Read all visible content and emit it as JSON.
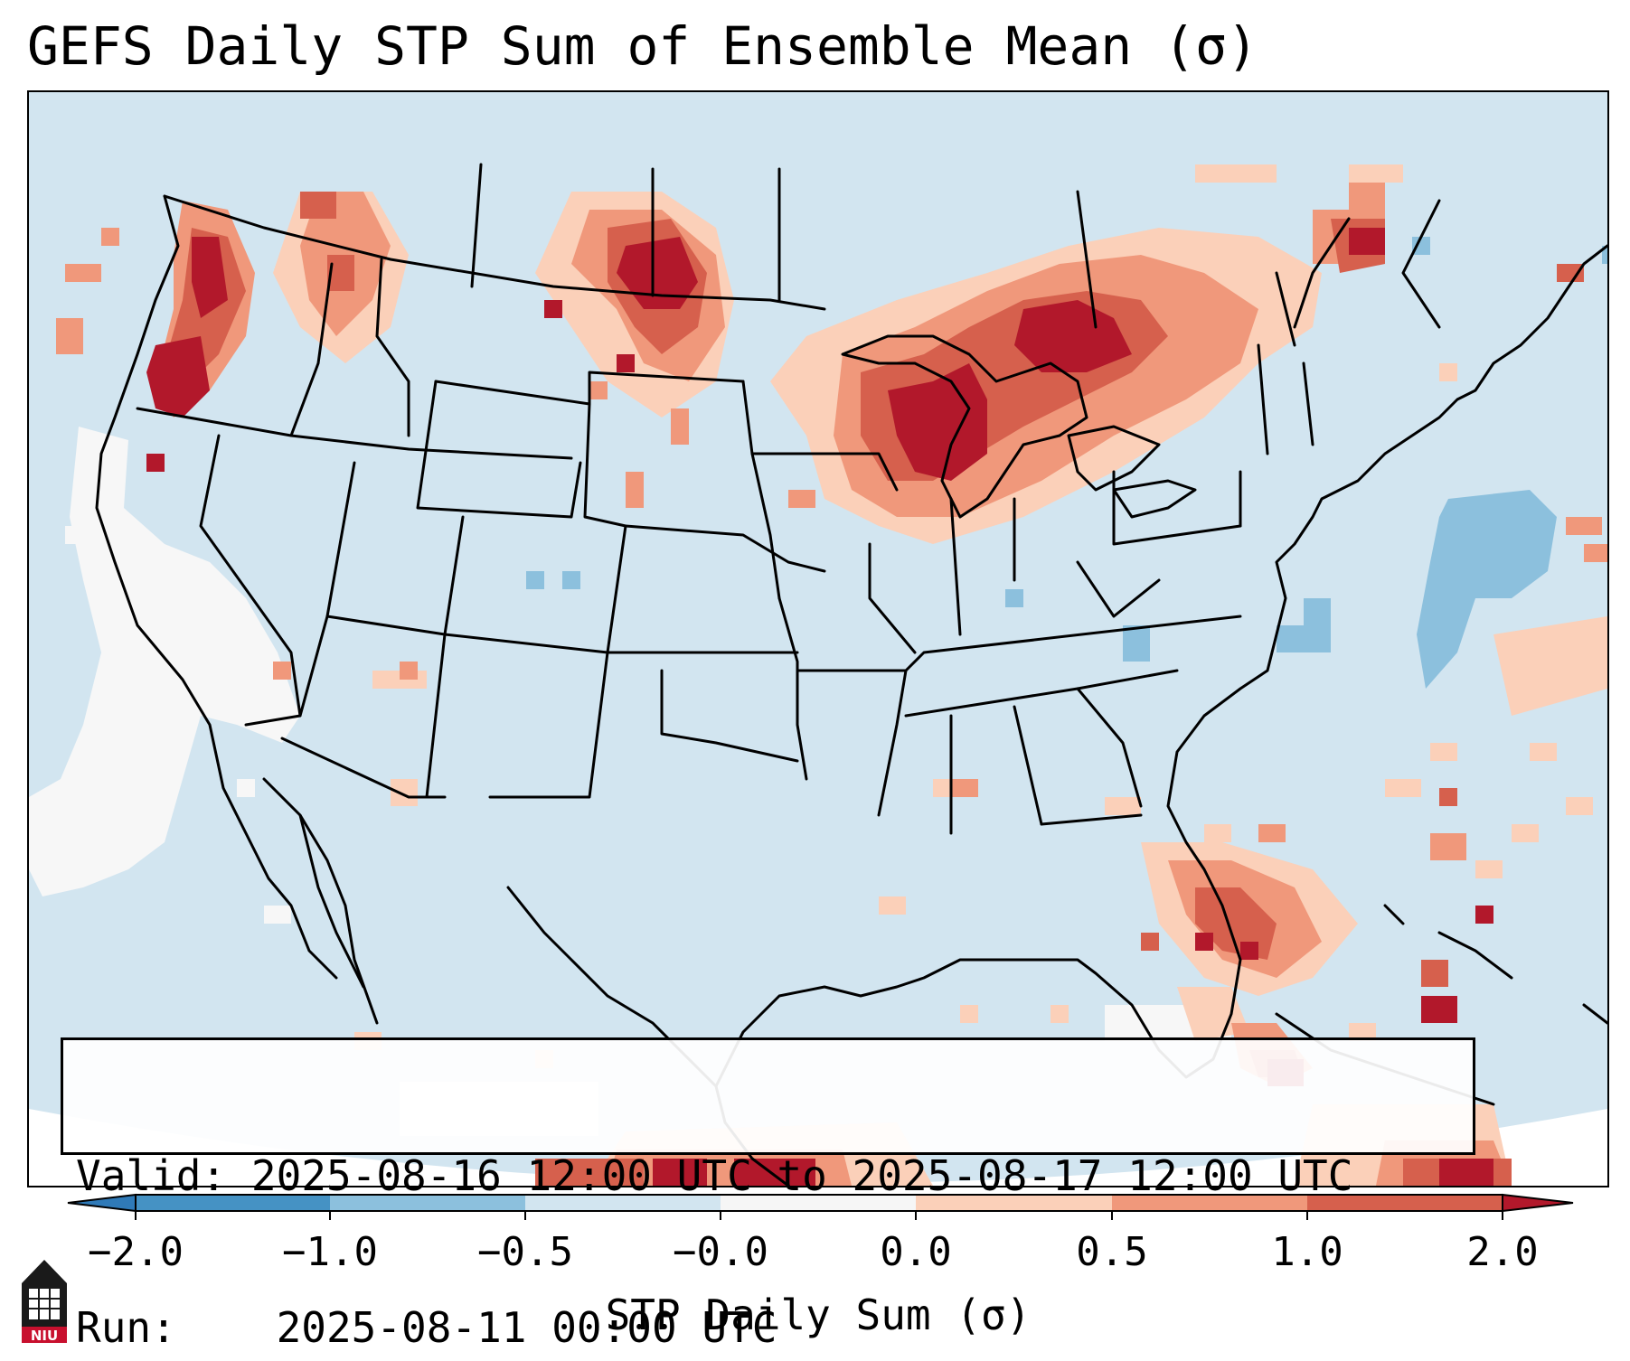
{
  "title": "GEFS Daily STP Sum of Ensemble Mean (σ)",
  "info": {
    "valid_label": "Valid:",
    "valid_value": "2025-08-16 12:00 UTC to 2025-08-17 12:00 UTC",
    "run_label": "Run:",
    "run_value": "2025-08-11 00:00 UTC"
  },
  "colorbar": {
    "label": "STP Daily Sum (σ)",
    "ticks": [
      "−2.0",
      "−1.0",
      "−0.5",
      "−0.0",
      "0.0",
      "0.5",
      "1.0",
      "2.0"
    ],
    "bin_colors": [
      "#2f7ab8",
      "#4592c4",
      "#8cc0dd",
      "#d2e5f0",
      "#f6f6f6",
      "#fbd0b9",
      "#f0987b",
      "#d6604d",
      "#b2182b"
    ],
    "extend": "both"
  },
  "map": {
    "projection": "Lambert Conformal",
    "region": "CONUS",
    "field": "STP daily sum anomaly (σ)",
    "colors": {
      "ocean_land_background": "#d2e5f0",
      "outside_domain": "#ffffff",
      "neutral_white": "#f7f7f7",
      "light_red": "#fbd0b9",
      "mid_red": "#f0987b",
      "strong_red": "#d6604d",
      "extreme_red": "#b2182b",
      "light_blue": "#8cc0dd",
      "borders": "#000000"
    }
  },
  "logo": {
    "text": "NIU",
    "icon": "niu-tower-icon"
  }
}
